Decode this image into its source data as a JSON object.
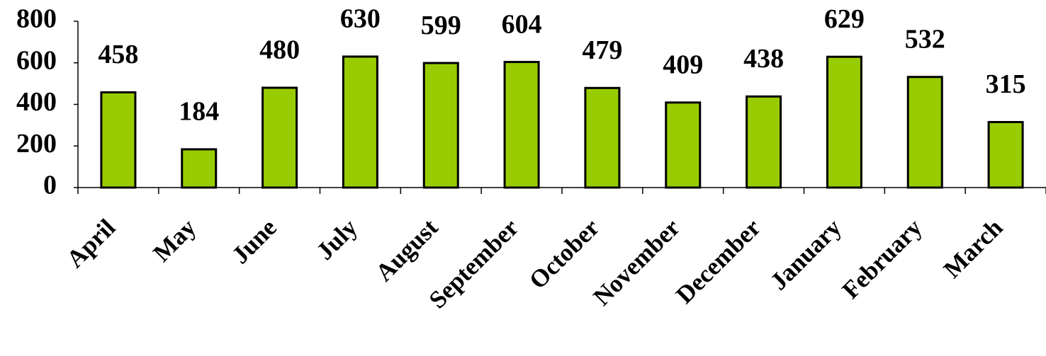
{
  "chart_data": {
    "type": "bar",
    "categories": [
      "April",
      "May",
      "June",
      "July",
      "August",
      "September",
      "October",
      "November",
      "December",
      "January",
      "February",
      "March"
    ],
    "values": [
      458,
      184,
      480,
      630,
      599,
      604,
      479,
      409,
      438,
      629,
      532,
      315
    ],
    "color": "#99cc00",
    "ylim": [
      0,
      800
    ],
    "yticks": [
      0,
      200,
      400,
      600,
      800
    ],
    "grid": false
  }
}
